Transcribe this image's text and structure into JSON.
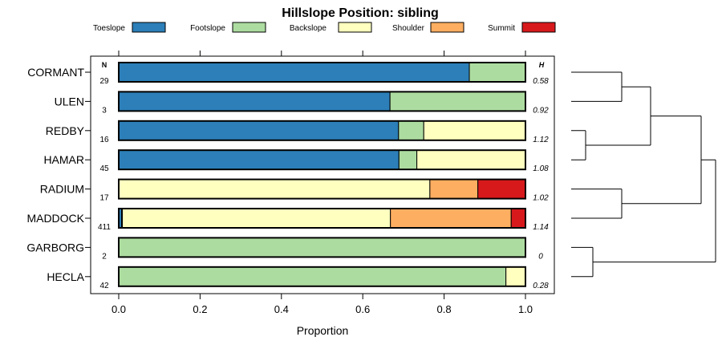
{
  "chart_data": {
    "type": "bar",
    "stacked": true,
    "orientation": "horizontal",
    "title": "Hillslope Position: sibling",
    "xlabel": "Proportion",
    "xlim": [
      0,
      1
    ],
    "xticks": [
      "0.0",
      "0.2",
      "0.4",
      "0.6",
      "0.8",
      "1.0"
    ],
    "n_header": "N",
    "h_header": "H",
    "legend": {
      "position": "top",
      "entries": [
        {
          "name": "Toeslope",
          "color": "#2c7fb8"
        },
        {
          "name": "Footslope",
          "color": "#addca0"
        },
        {
          "name": "Backslope",
          "color": "#ffffbf"
        },
        {
          "name": "Shoulder",
          "color": "#fdae61"
        },
        {
          "name": "Summit",
          "color": "#d7191c"
        }
      ]
    },
    "categories": [
      "CORMANT",
      "ULEN",
      "REDBY",
      "HAMAR",
      "RADIUM",
      "MADDOCK",
      "GARBORG",
      "HECLA"
    ],
    "n": [
      "29",
      "3",
      "16",
      "45",
      "17",
      "411",
      "2",
      "42"
    ],
    "h": [
      "0.58",
      "0.92",
      "1.12",
      "1.08",
      "1.02",
      "1.14",
      "0",
      "0.28"
    ],
    "series": [
      {
        "name": "Toeslope",
        "values": [
          0.862,
          0.667,
          0.688,
          0.689,
          0,
          0.007,
          0,
          0
        ]
      },
      {
        "name": "Footslope",
        "values": [
          0.138,
          0.333,
          0.062,
          0.044,
          0,
          0.002,
          1.0,
          0.952
        ]
      },
      {
        "name": "Backslope",
        "values": [
          0,
          0,
          0.25,
          0.267,
          0.765,
          0.659,
          0,
          0.048
        ]
      },
      {
        "name": "Shoulder",
        "values": [
          0,
          0,
          0,
          0,
          0.118,
          0.297,
          0,
          0
        ]
      },
      {
        "name": "Summit",
        "values": [
          0,
          0,
          0,
          0,
          0.117,
          0.035,
          0,
          0
        ]
      }
    ],
    "dendrogram": {
      "position": "right",
      "merge_order": [
        [
          [
            "REDBY",
            "HAMAR"
          ],
          0.1
        ],
        [
          [
            "GARBORG",
            "HECLA"
          ],
          0.15
        ],
        [
          [
            "CORMANT",
            "ULEN"
          ],
          0.35
        ],
        [
          [
            "RADIUM",
            "MADDOCK"
          ],
          0.35
        ],
        [
          [
            "CORMANT+ULEN",
            "REDBY+HAMAR"
          ],
          0.55
        ],
        [
          [
            "CORMANT+ULEN+REDBY+HAMAR",
            "RADIUM+MADDOCK"
          ],
          0.9
        ],
        [
          [
            "ALL6",
            "GARBORG+HECLA"
          ],
          1.0
        ]
      ]
    }
  }
}
